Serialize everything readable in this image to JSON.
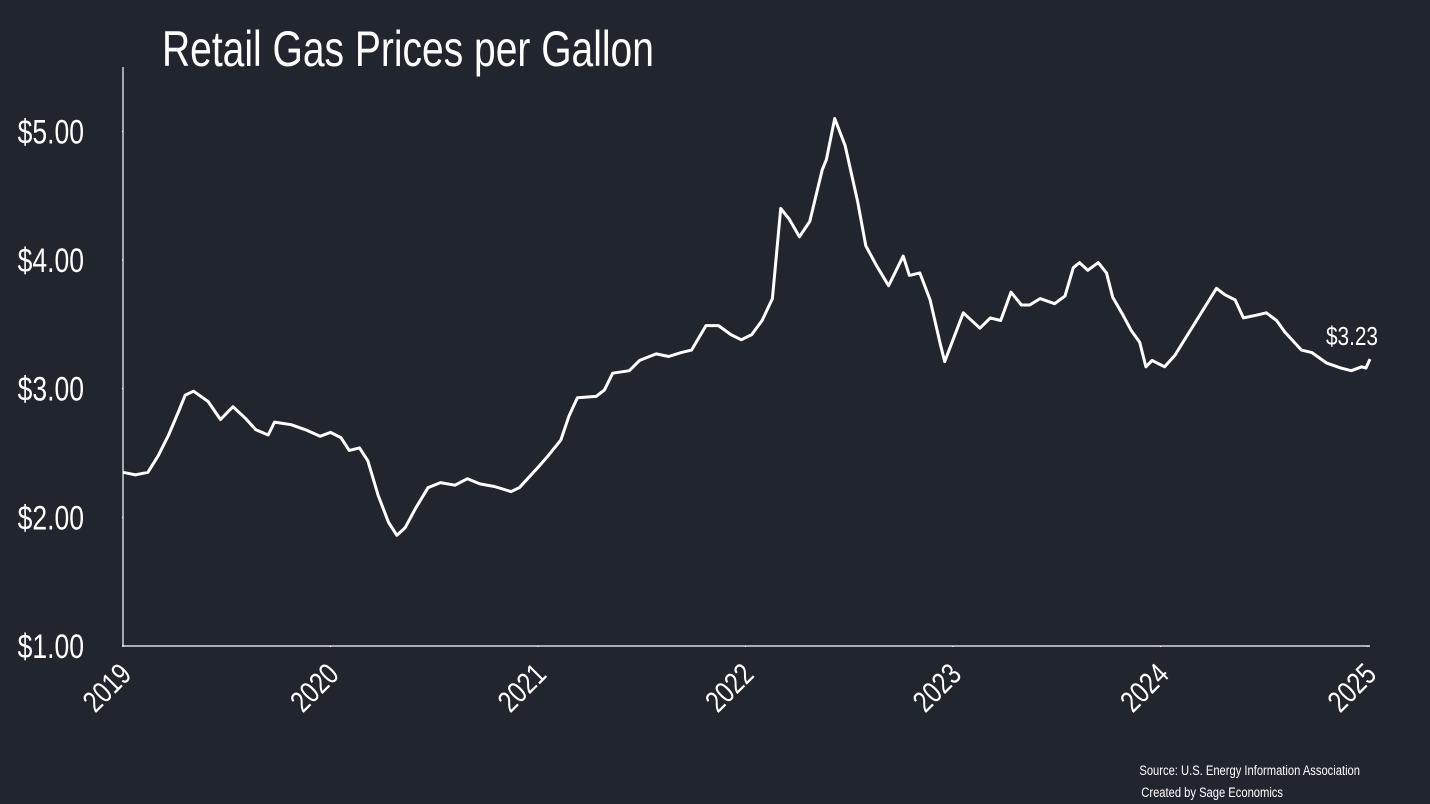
{
  "chart_data": {
    "type": "line",
    "title": "Retail Gas Prices per Gallon",
    "source": [
      "Source: U.S. Energy Information Association",
      "Created by Sage Economics"
    ],
    "x": [
      2019.0,
      2019.06,
      2019.12,
      2019.17,
      2019.22,
      2019.27,
      2019.3,
      2019.34,
      2019.41,
      2019.47,
      2019.53,
      2019.59,
      2019.64,
      2019.7,
      2019.73,
      2019.81,
      2019.88,
      2019.95,
      2020.0,
      2020.05,
      2020.09,
      2020.14,
      2020.18,
      2020.23,
      2020.28,
      2020.32,
      2020.36,
      2020.41,
      2020.47,
      2020.53,
      2020.6,
      2020.66,
      2020.72,
      2020.79,
      2020.87,
      2020.91,
      2020.99,
      2021.05,
      2021.11,
      2021.15,
      2021.19,
      2021.28,
      2021.32,
      2021.36,
      2021.44,
      2021.49,
      2021.57,
      2021.63,
      2021.69,
      2021.74,
      2021.81,
      2021.87,
      2021.93,
      2021.98,
      2022.03,
      2022.08,
      2022.13,
      2022.17,
      2022.21,
      2022.26,
      2022.31,
      2022.37,
      2022.39,
      2022.43,
      2022.48,
      2022.54,
      2022.58,
      2022.63,
      2022.69,
      2022.76,
      2022.79,
      2022.84,
      2022.89,
      2022.94,
      2022.96,
      2023.0,
      2023.05,
      2023.13,
      2023.18,
      2023.23,
      2023.28,
      2023.33,
      2023.37,
      2023.42,
      2023.49,
      2023.54,
      2023.58,
      2023.61,
      2023.65,
      2023.7,
      2023.74,
      2023.77,
      2023.82,
      2023.86,
      2023.9,
      2023.93,
      2023.96,
      2024.02,
      2024.07,
      2024.12,
      2024.17,
      2024.22,
      2024.27,
      2024.31,
      2024.36,
      2024.4,
      2024.46,
      2024.51,
      2024.56,
      2024.6,
      2024.68,
      2024.73,
      2024.8,
      2024.87,
      2024.92,
      2024.97,
      2024.99,
      2025.01
    ],
    "series": [
      {
        "name": "Retail gas price",
        "color": "#ffffff",
        "values": [
          2.35,
          2.33,
          2.35,
          2.48,
          2.64,
          2.83,
          2.95,
          2.98,
          2.9,
          2.76,
          2.86,
          2.77,
          2.68,
          2.64,
          2.74,
          2.72,
          2.68,
          2.63,
          2.66,
          2.62,
          2.52,
          2.54,
          2.44,
          2.17,
          1.96,
          1.86,
          1.92,
          2.07,
          2.23,
          2.27,
          2.25,
          2.3,
          2.26,
          2.24,
          2.2,
          2.23,
          2.37,
          2.48,
          2.6,
          2.79,
          2.93,
          2.94,
          2.99,
          3.12,
          3.14,
          3.22,
          3.27,
          3.25,
          3.28,
          3.3,
          3.49,
          3.49,
          3.42,
          3.38,
          3.42,
          3.53,
          3.7,
          4.4,
          4.32,
          4.18,
          4.3,
          4.7,
          4.78,
          5.1,
          4.89,
          4.46,
          4.11,
          3.96,
          3.8,
          4.03,
          3.88,
          3.9,
          3.69,
          3.34,
          3.21,
          3.38,
          3.59,
          3.47,
          3.55,
          3.53,
          3.75,
          3.65,
          3.65,
          3.7,
          3.66,
          3.72,
          3.94,
          3.98,
          3.92,
          3.98,
          3.9,
          3.71,
          3.57,
          3.45,
          3.36,
          3.17,
          3.22,
          3.17,
          3.26,
          3.39,
          3.52,
          3.65,
          3.78,
          3.73,
          3.69,
          3.55,
          3.57,
          3.59,
          3.53,
          3.44,
          3.3,
          3.28,
          3.2,
          3.16,
          3.14,
          3.17,
          3.16,
          3.23
        ],
        "value_labels": [
          null,
          null,
          null,
          null,
          null,
          null,
          null,
          null,
          null,
          null,
          null,
          null,
          null,
          null,
          null,
          null,
          null,
          null,
          null,
          null,
          null,
          null,
          null,
          null,
          null,
          null,
          null,
          null,
          null,
          null,
          null,
          null,
          null,
          null,
          null,
          null,
          null,
          null,
          null,
          null,
          null,
          null,
          null,
          null,
          null,
          null,
          null,
          null,
          null,
          null,
          null,
          null,
          null,
          null,
          null,
          null,
          null,
          null,
          null,
          null,
          null,
          null,
          null,
          null,
          null,
          null,
          null,
          null,
          null,
          null,
          null,
          null,
          null,
          null,
          null,
          null,
          null,
          null,
          null,
          null,
          null,
          null,
          null,
          null,
          null,
          null,
          null,
          null,
          null,
          null,
          null,
          null,
          null,
          null,
          null,
          null,
          null,
          null,
          null,
          null,
          null,
          null,
          null,
          null,
          null,
          null,
          null,
          null,
          null,
          null,
          null,
          null,
          null,
          null,
          null,
          null,
          null,
          "$3.23"
        ]
      }
    ],
    "xlim": [
      2019,
      2025.01
    ],
    "xticks": [
      2019,
      2020,
      2021,
      2022,
      2023,
      2024,
      2025
    ],
    "ylim": [
      1,
      5.5
    ],
    "yticks": [
      {
        "value": 1,
        "label": "$1.00"
      },
      {
        "value": 2,
        "label": "$2.00"
      },
      {
        "value": 3,
        "label": "$3.00"
      },
      {
        "value": 4,
        "label": "$4.00"
      },
      {
        "value": 5,
        "label": "$5.00"
      }
    ],
    "grid": false
  }
}
